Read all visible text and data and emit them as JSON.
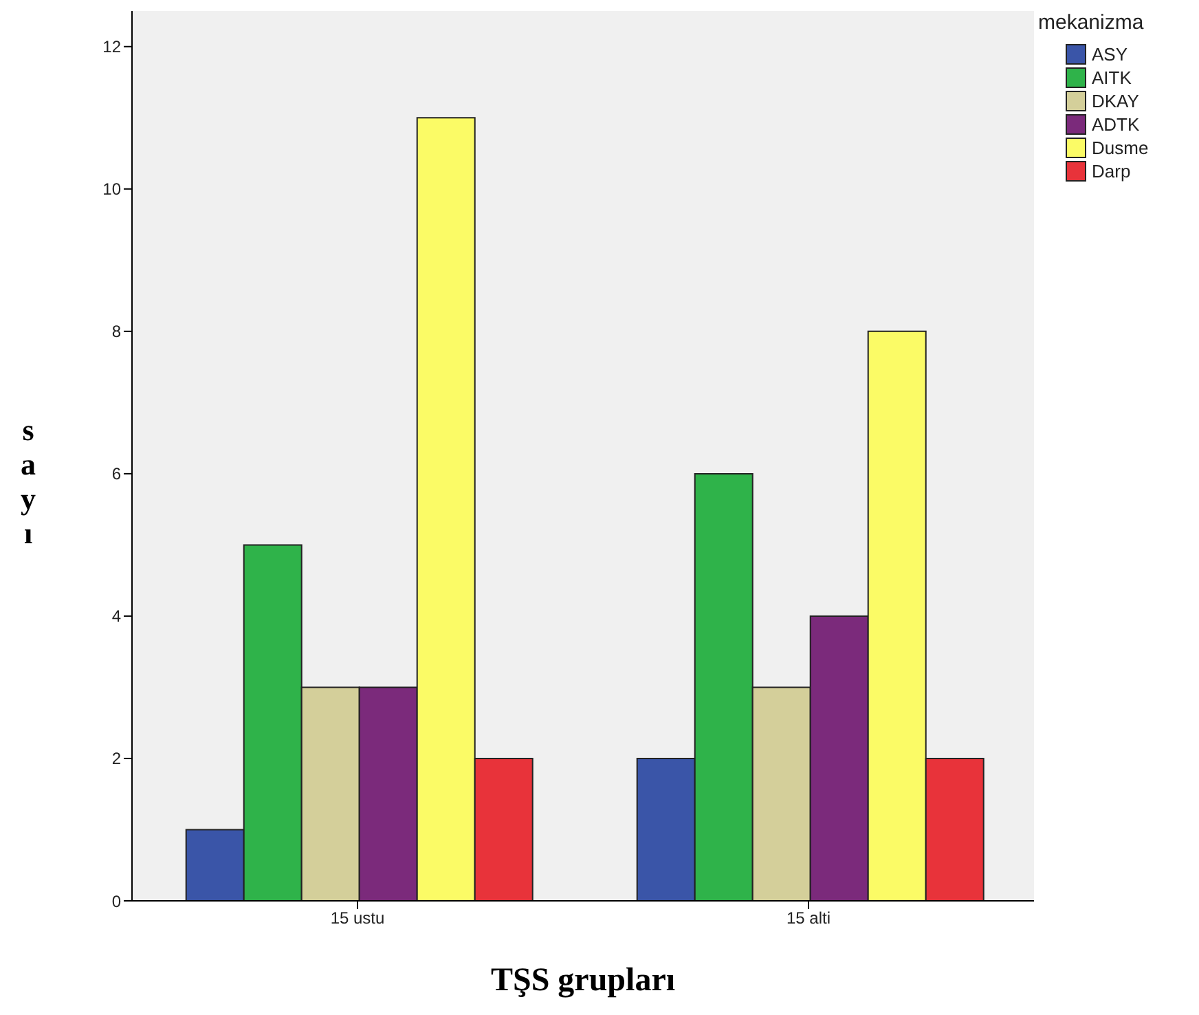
{
  "chart_data": {
    "type": "bar",
    "xlabel": "TŞS grupları",
    "ylabel": "sayı",
    "legend_title": "mekanizma",
    "categories": [
      "15 ustu",
      "15 alti"
    ],
    "series": [
      {
        "name": "ASY",
        "color": "#3a55a8",
        "values": [
          1,
          2
        ]
      },
      {
        "name": "AITK",
        "color": "#2fb34a",
        "values": [
          5,
          6
        ]
      },
      {
        "name": "DKAY",
        "color": "#d4cf9a",
        "values": [
          3,
          3
        ]
      },
      {
        "name": "ADTK",
        "color": "#7b2a7b",
        "values": [
          3,
          4
        ]
      },
      {
        "name": "Dusme",
        "color": "#fbfb66",
        "values": [
          11,
          8
        ]
      },
      {
        "name": "Darp",
        "color": "#e8333a",
        "values": [
          2,
          2
        ]
      }
    ],
    "ylim": [
      0,
      12.5
    ],
    "yticks": [
      0,
      2,
      4,
      6,
      8,
      10,
      12
    ],
    "grid": false,
    "legend": "top right"
  }
}
